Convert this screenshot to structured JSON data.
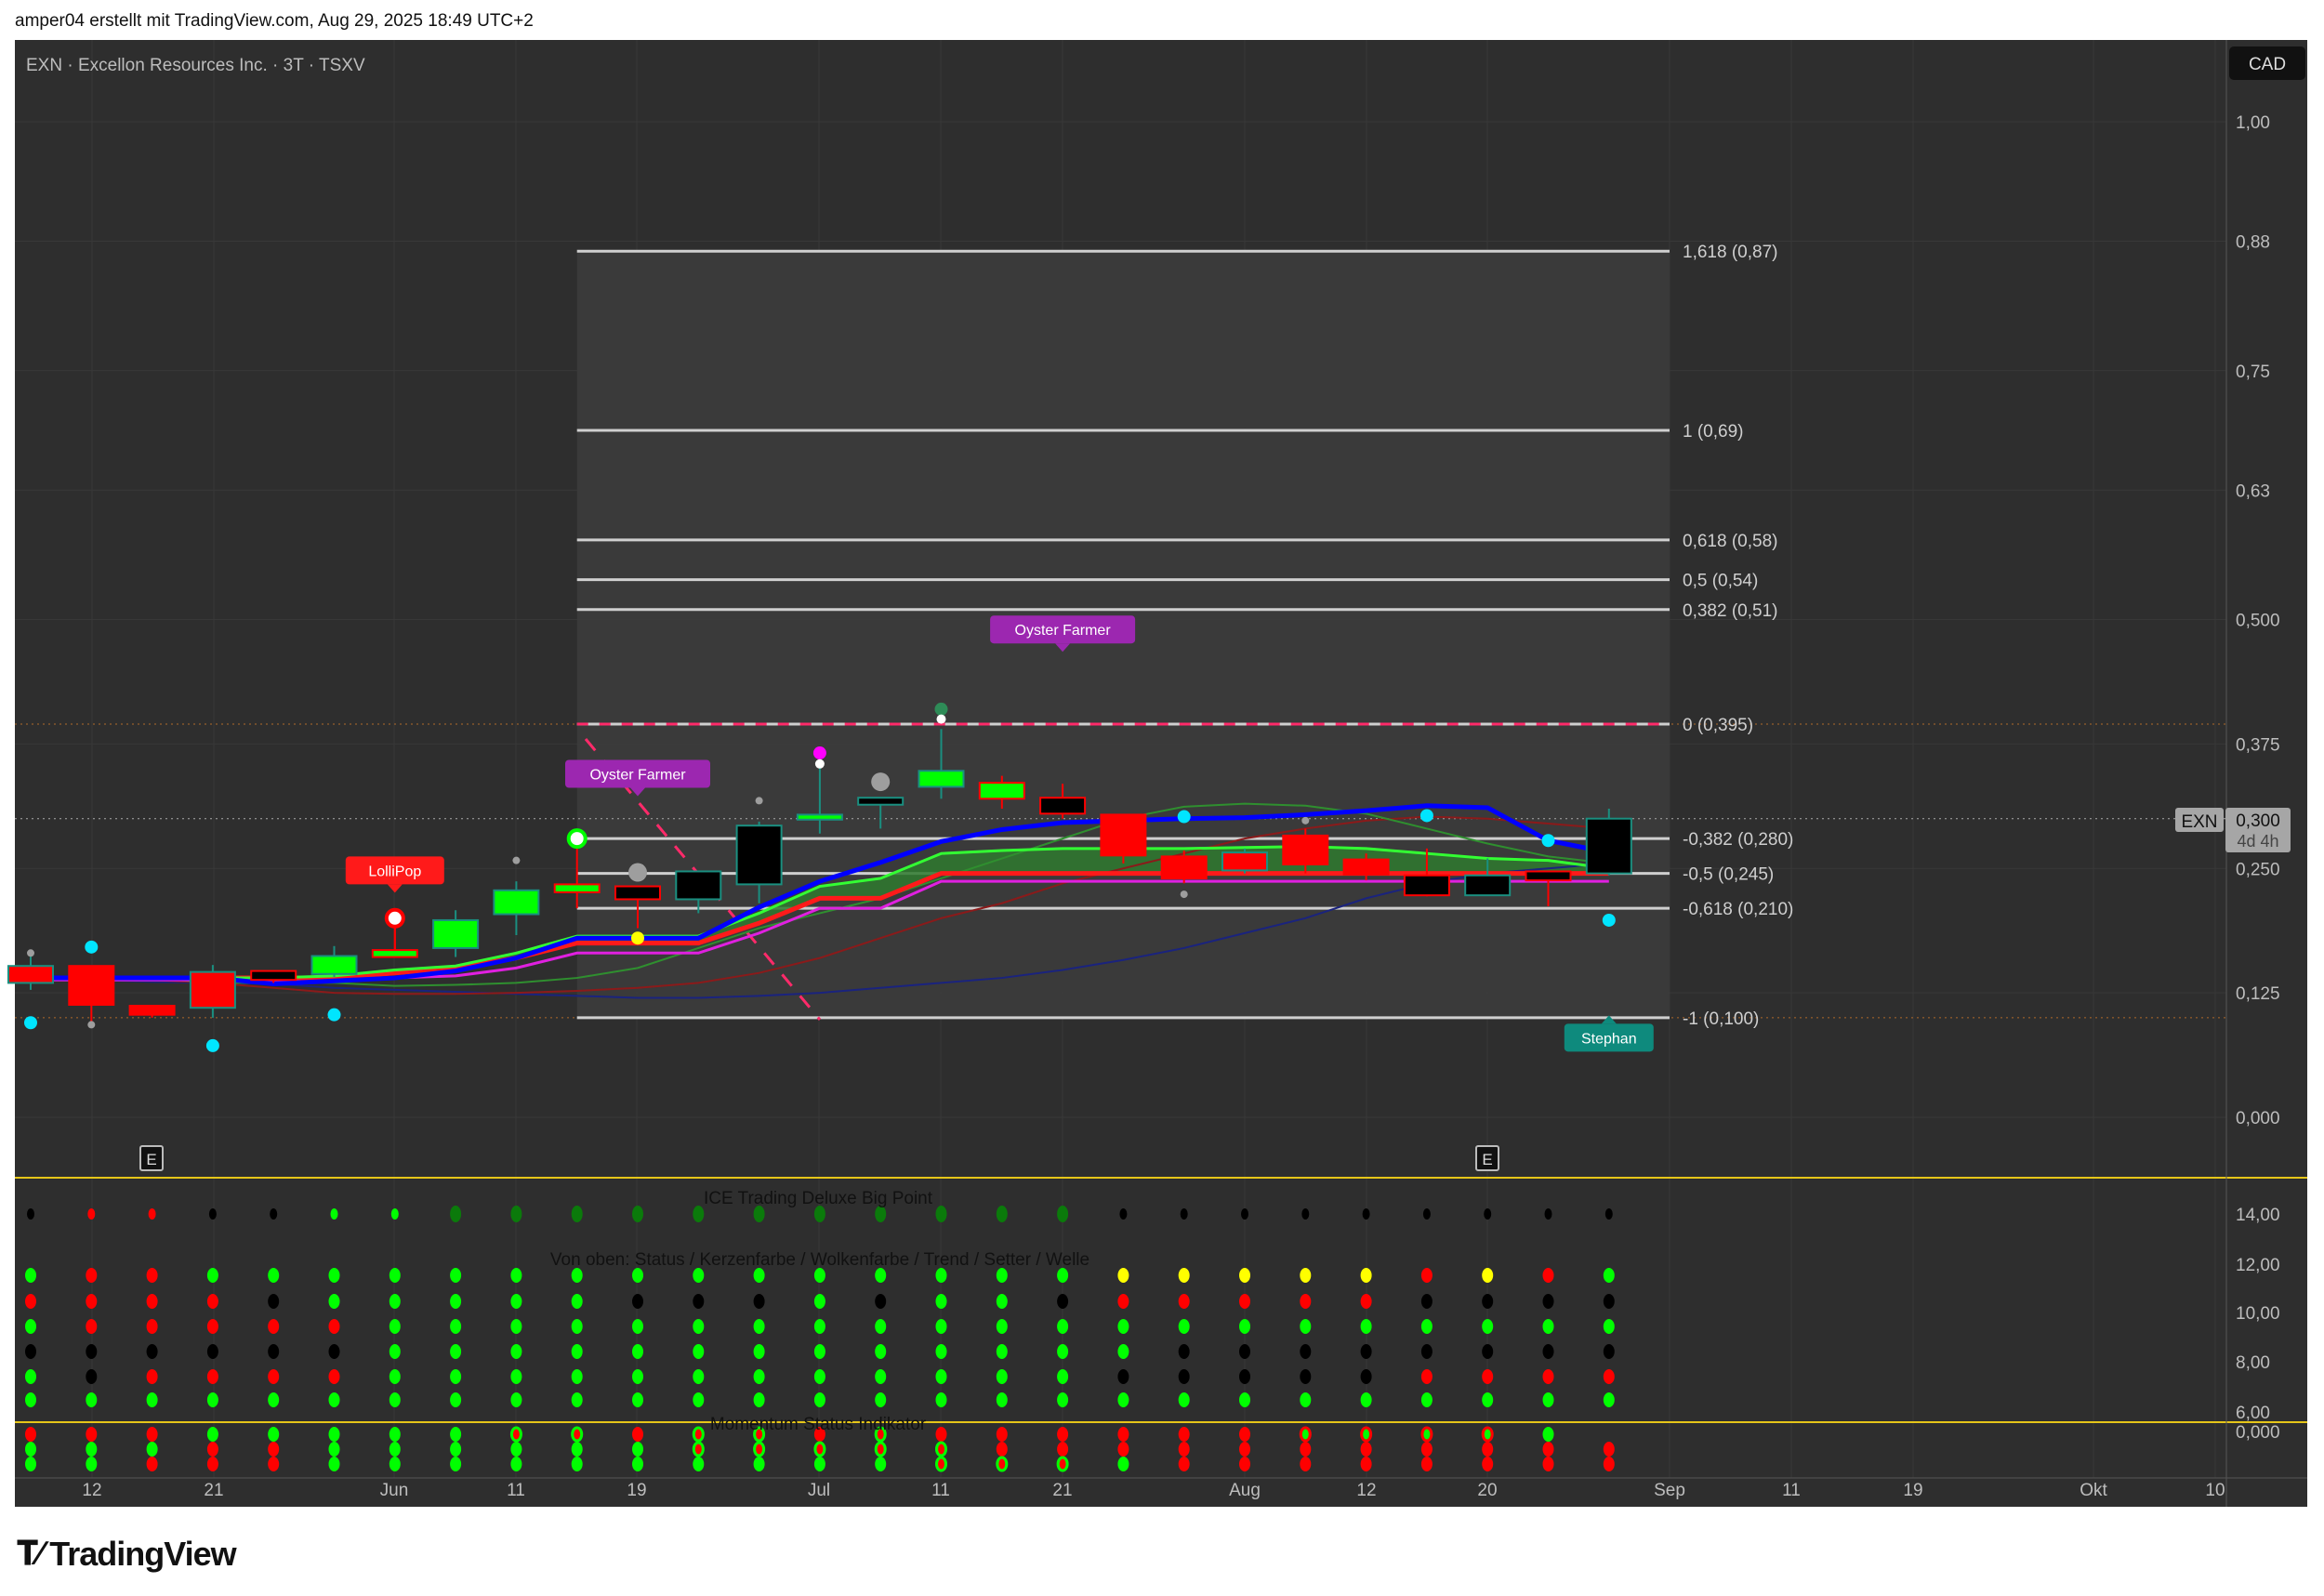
{
  "attribution": "amper04 erstellt mit TradingView.com, Aug 29, 2025 18:49 UTC+2",
  "symbol_title": "EXN · Excellon Resources Inc. · 3T · TSXV",
  "currency_button": "CAD",
  "price_badge": {
    "symbol": "EXN",
    "price": "0,300",
    "countdown": "4d 4h"
  },
  "logo_text": "TradingView",
  "colors": {
    "background": "#2e2e2e",
    "fib_zone": "#3c3c3c",
    "bull": "#00ff00",
    "bear": "#ff0000",
    "neutral": "#000000",
    "teal": "#1a8f80",
    "panel_divider": "#e6c619",
    "blue_line": "#0000ff",
    "cloud_top": "#33ff33",
    "cloud_base": "#ff1a1a",
    "magenta_line": "#e020e0",
    "dark_green": "#2f8f2f",
    "dark_red": "#8b1a1a",
    "navy": "#1a237e",
    "cyan": "#00e5ff",
    "yellow": "#ffff00",
    "dark_dot_green": "#0b7a0b"
  },
  "price_axis": [
    "1,00",
    "0,88",
    "0,75",
    "0,63",
    "0,500",
    "0,375",
    "0,250",
    "0,125",
    "0,000"
  ],
  "price_axis_values": [
    1.0,
    0.88,
    0.75,
    0.63,
    0.5,
    0.375,
    0.25,
    0.125,
    0.0
  ],
  "lower_axis": [
    "14,00",
    "12,00",
    "10,00",
    "8,00",
    "6,00",
    "0,000"
  ],
  "time_axis": [
    "12",
    "21",
    "Jun",
    "11",
    "19",
    "Jul",
    "11",
    "21",
    "Aug",
    "12",
    "20",
    "Sep",
    "11",
    "19",
    "Okt",
    "10"
  ],
  "fib_levels": [
    {
      "label": "1,618 (0,87)",
      "price": 0.87
    },
    {
      "label": "1 (0,69)",
      "price": 0.69
    },
    {
      "label": "0,618 (0,58)",
      "price": 0.58
    },
    {
      "label": "0,5 (0,54)",
      "price": 0.54
    },
    {
      "label": "0,382 (0,51)",
      "price": 0.51
    },
    {
      "label": "0 (0,395)",
      "price": 0.395
    },
    {
      "label": "-0,382 (0,280)",
      "price": 0.28
    },
    {
      "label": "-0,5 (0,245)",
      "price": 0.245
    },
    {
      "label": "-0,618 (0,210)",
      "price": 0.21
    },
    {
      "label": "-1 (0,100)",
      "price": 0.1
    }
  ],
  "candles": [
    [
      0.152,
      0.167,
      0.128,
      0.135,
      "red",
      "teal"
    ],
    [
      0.152,
      0.152,
      0.095,
      0.113,
      "red",
      "red"
    ],
    [
      0.112,
      0.112,
      0.1,
      0.103,
      "red",
      "red"
    ],
    [
      0.146,
      0.153,
      0.1,
      0.11,
      "red",
      "teal"
    ],
    [
      0.147,
      0.147,
      0.135,
      0.138,
      "black",
      "red"
    ],
    [
      0.144,
      0.172,
      0.141,
      0.162,
      "green",
      "teal"
    ],
    [
      0.161,
      0.199,
      0.161,
      0.168,
      "green",
      "red"
    ],
    [
      0.17,
      0.208,
      0.161,
      0.198,
      "green",
      "teal"
    ],
    [
      0.204,
      0.237,
      0.183,
      0.228,
      "green",
      "teal"
    ],
    [
      0.226,
      0.27,
      0.21,
      0.234,
      "green",
      "red"
    ],
    [
      0.232,
      0.232,
      0.19,
      0.219,
      "black",
      "red"
    ],
    [
      0.247,
      0.247,
      0.205,
      0.219,
      "black",
      "teal"
    ],
    [
      0.293,
      0.297,
      0.215,
      0.234,
      "black",
      "teal"
    ],
    [
      0.299,
      0.355,
      0.285,
      0.304,
      "green",
      "teal"
    ],
    [
      0.321,
      0.321,
      0.29,
      0.314,
      "black",
      "teal"
    ],
    [
      0.332,
      0.39,
      0.32,
      0.348,
      "green",
      "teal"
    ],
    [
      0.336,
      0.343,
      0.31,
      0.32,
      "green",
      "red"
    ],
    [
      0.321,
      0.335,
      0.3,
      0.305,
      "black",
      "red"
    ],
    [
      0.304,
      0.304,
      0.255,
      0.263,
      "red",
      "red"
    ],
    [
      0.262,
      0.268,
      0.235,
      0.24,
      "red",
      "red"
    ],
    [
      0.266,
      0.27,
      0.245,
      0.248,
      "red",
      "teal"
    ],
    [
      0.283,
      0.29,
      0.245,
      0.254,
      "red",
      "red"
    ],
    [
      0.259,
      0.265,
      0.238,
      0.244,
      "red",
      "red"
    ],
    [
      0.243,
      0.27,
      0.222,
      0.223,
      "black",
      "red"
    ],
    [
      0.243,
      0.26,
      0.223,
      0.223,
      "black",
      "teal"
    ],
    [
      0.247,
      0.247,
      0.212,
      0.238,
      "black",
      "red"
    ],
    [
      0.245,
      0.31,
      0.243,
      0.3,
      "black",
      "teal"
    ]
  ],
  "lines": {
    "blue_line": [
      0.14,
      0.14,
      0.14,
      0.14,
      0.134,
      0.137,
      0.14,
      0.147,
      0.16,
      0.18,
      0.18,
      0.18,
      0.211,
      0.237,
      0.256,
      0.277,
      0.289,
      0.296,
      0.298,
      0.3,
      0.301,
      0.304,
      0.308,
      0.313,
      0.311,
      0.278,
      0.266
    ],
    "cloud_top": [
      0.14,
      0.14,
      0.14,
      0.14,
      0.14,
      0.142,
      0.148,
      0.152,
      0.165,
      0.182,
      0.182,
      0.182,
      0.205,
      0.232,
      0.24,
      0.265,
      0.268,
      0.27,
      0.27,
      0.27,
      0.271,
      0.272,
      0.27,
      0.265,
      0.26,
      0.258,
      0.25
    ],
    "cloud_base": [
      0.14,
      0.14,
      0.14,
      0.14,
      0.14,
      0.14,
      0.145,
      0.15,
      0.16,
      0.175,
      0.175,
      0.175,
      0.195,
      0.22,
      0.22,
      0.245,
      0.245,
      0.245,
      0.245,
      0.245,
      0.245,
      0.245,
      0.245,
      0.245,
      0.245,
      0.245,
      0.245
    ],
    "magenta_line": [
      0.138,
      0.138,
      0.138,
      0.138,
      0.138,
      0.137,
      0.14,
      0.142,
      0.15,
      0.165,
      0.165,
      0.165,
      0.185,
      0.21,
      0.21,
      0.237,
      0.237,
      0.237,
      0.237,
      0.237,
      0.237,
      0.237,
      0.237,
      0.237,
      0.237,
      0.237,
      0.237
    ],
    "dark_green": [
      0.14,
      0.14,
      0.14,
      0.135,
      0.135,
      0.135,
      0.132,
      0.133,
      0.135,
      0.14,
      0.15,
      0.17,
      0.19,
      0.205,
      0.22,
      0.24,
      0.26,
      0.28,
      0.3,
      0.312,
      0.315,
      0.313,
      0.305,
      0.29,
      0.275,
      0.262,
      0.255
    ],
    "dark_red": [
      0.14,
      0.14,
      0.138,
      0.135,
      0.13,
      0.125,
      0.124,
      0.124,
      0.125,
      0.127,
      0.13,
      0.135,
      0.145,
      0.16,
      0.18,
      0.2,
      0.215,
      0.235,
      0.25,
      0.265,
      0.28,
      0.29,
      0.298,
      0.302,
      0.3,
      0.295,
      0.29
    ],
    "navy": [
      0.14,
      0.138,
      0.136,
      0.135,
      0.134,
      0.13,
      0.128,
      0.126,
      0.124,
      0.122,
      0.12,
      0.12,
      0.122,
      0.125,
      0.13,
      0.135,
      0.14,
      0.148,
      0.158,
      0.17,
      0.185,
      0.2,
      0.22,
      0.235,
      0.245,
      0.25,
      0.255
    ]
  },
  "markers": [
    {
      "col": 0,
      "price": 0.095,
      "kind": "cyan"
    },
    {
      "col": 1,
      "price": 0.171,
      "kind": "cyan"
    },
    {
      "col": 3,
      "price": 0.072,
      "kind": "cyan"
    },
    {
      "col": 5,
      "price": 0.103,
      "kind": "cyan"
    },
    {
      "col": 19,
      "price": 0.302,
      "kind": "cyan"
    },
    {
      "col": 23,
      "price": 0.303,
      "kind": "cyan"
    },
    {
      "col": 25,
      "price": 0.278,
      "kind": "cyan"
    },
    {
      "col": 26,
      "price": 0.198,
      "kind": "cyan"
    },
    {
      "col": 0,
      "price": 0.165,
      "kind": "gray-small"
    },
    {
      "col": 1,
      "price": 0.093,
      "kind": "gray-small"
    },
    {
      "col": 8,
      "price": 0.258,
      "kind": "gray-small"
    },
    {
      "col": 12,
      "price": 0.318,
      "kind": "gray-small"
    },
    {
      "col": 19,
      "price": 0.224,
      "kind": "gray-small"
    },
    {
      "col": 21,
      "price": 0.298,
      "kind": "gray-small"
    },
    {
      "col": 10,
      "price": 0.246,
      "kind": "gray-large"
    },
    {
      "col": 14,
      "price": 0.337,
      "kind": "gray-large"
    },
    {
      "col": 13,
      "price": 0.366,
      "kind": "magenta"
    },
    {
      "col": 13,
      "price": 0.355,
      "kind": "white"
    },
    {
      "col": 15,
      "price": 0.41,
      "kind": "dark-green"
    },
    {
      "col": 15,
      "price": 0.4,
      "kind": "white"
    },
    {
      "col": 9,
      "price": 0.28,
      "kind": "green-ring"
    },
    {
      "col": 6,
      "price": 0.2,
      "kind": "red-ring"
    },
    {
      "col": 10,
      "price": 0.18,
      "kind": "yellow"
    }
  ],
  "labels": [
    {
      "text": "LolliPop",
      "col": 6,
      "price": 0.248,
      "color": "#ff1a1a",
      "pointer": "down"
    },
    {
      "text": "Oyster Farmer",
      "col": 10,
      "price": 0.345,
      "color": "#9c27b0",
      "pointer": "down"
    },
    {
      "text": "Oyster Farmer",
      "col": 17,
      "price": 0.49,
      "color": "#9c27b0",
      "pointer": "down"
    },
    {
      "text": "Stephan",
      "col": 26,
      "price": 0.08,
      "color": "#0e8a7d",
      "pointer": "up"
    }
  ],
  "earnings_marker": "E",
  "indicator_titles": {
    "big_point": "ICE Trading Deluxe Big Point",
    "status_legend": "Von oben: Status / Kerzenfarbe / Wolkenfarbe / Trend / Setter / Welle",
    "momentum": "Momentum Status Indikator"
  },
  "big_point_dots": "krrkkggGGGGGGGGGGGkkkkkkkkk",
  "status_dots": [
    "grrgggggggggggggggyyyyyryrg",
    "rrrrkgggggkkkgkggkrrrrrkkkk",
    "grrrrrggggggggggggggggggggg",
    "kkkkkkgggggggggggggkkkkkkkk",
    "gkrrrrggggggggggggkkkkkrrrr",
    "ggggggggggggggggggggggggggg"
  ],
  "momentum_dots": [
    "rrrgggggoorooror rrrrrxxxxg",
    "gggrrggggggooooorrrrrrrrrrr",
    "ggrrrggggggggggooogrrrrrrrr"
  ]
}
